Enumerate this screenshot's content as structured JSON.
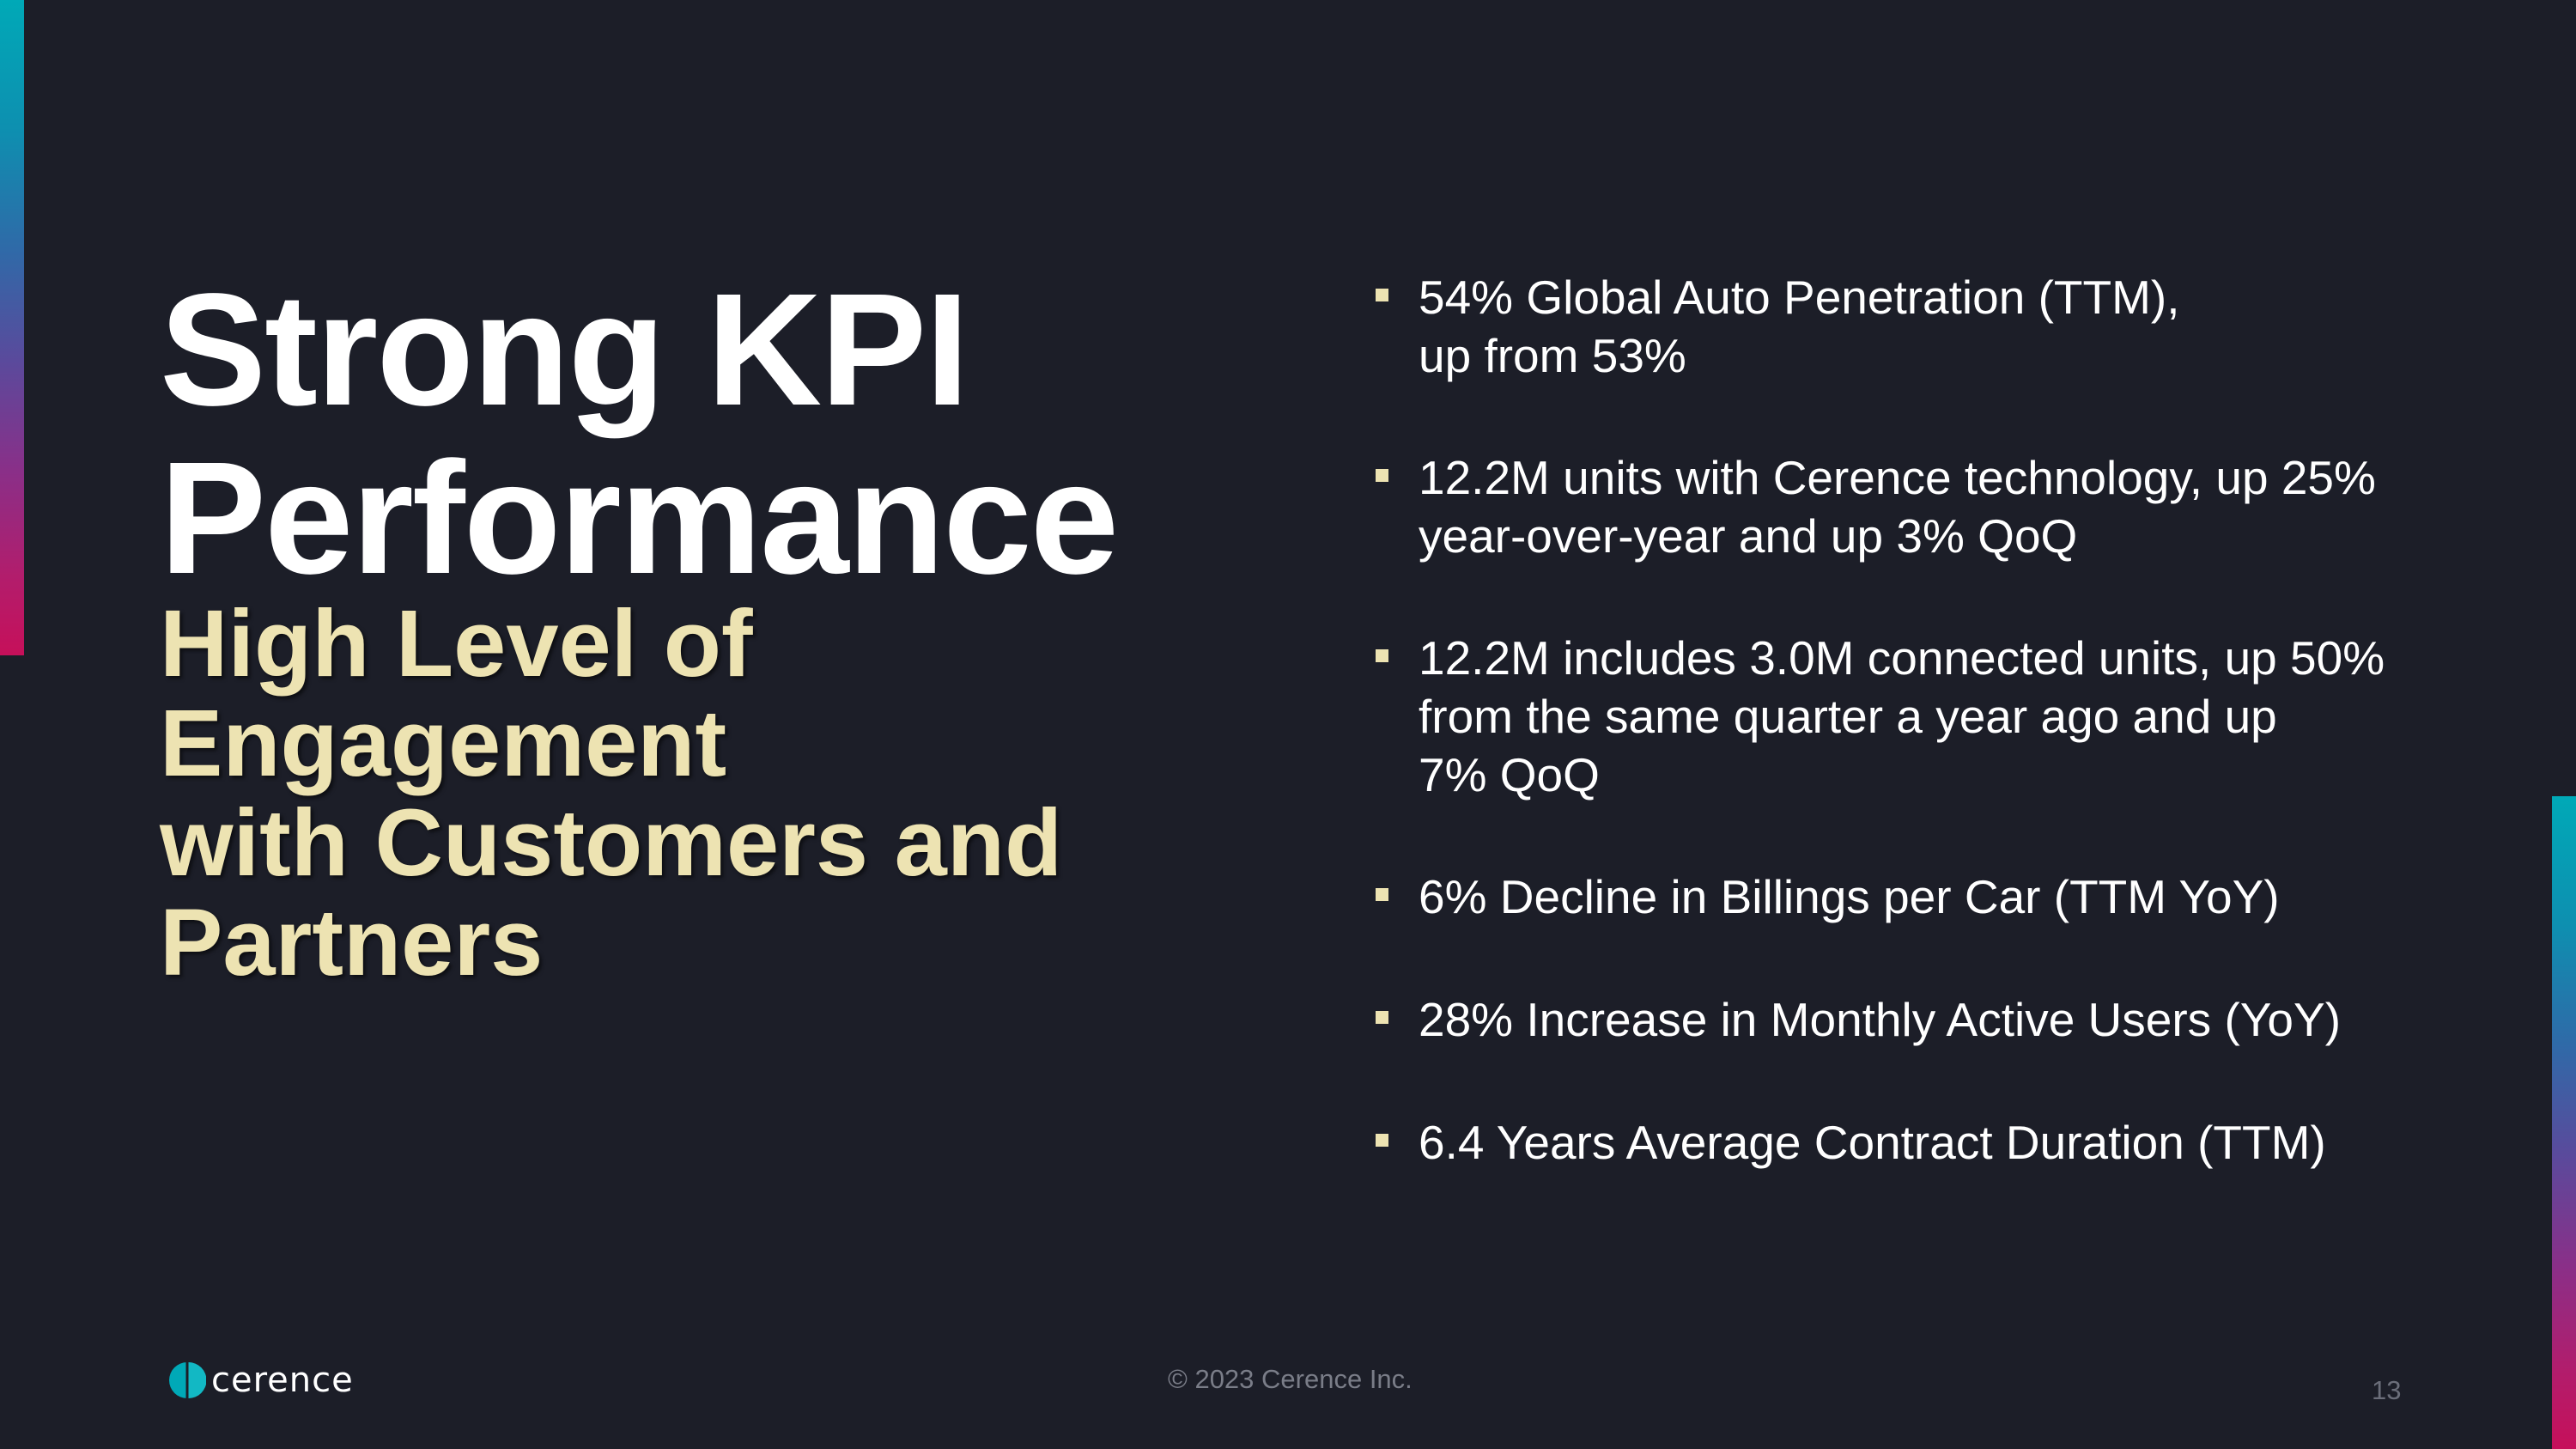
{
  "slide": {
    "title_lines": [
      "Strong KPI",
      "Performance"
    ],
    "subtitle_lines": [
      "High Level of",
      "Engagement",
      "with Customers and",
      "Partners"
    ],
    "bullets": [
      {
        "lines": [
          "54% Global Auto Penetration (TTM),",
          "up from 53%"
        ]
      },
      {
        "lines": [
          "12.2M units with Cerence technology, up 25%",
          "year-over-year and up 3% QoQ"
        ]
      },
      {
        "lines": [
          "12.2M includes 3.0M connected units, up 50%",
          "from the same quarter a year ago and up",
          "7% QoQ"
        ]
      },
      {
        "lines": [
          "6% Decline in Billings per Car (TTM YoY)"
        ]
      },
      {
        "lines": [
          "28% Increase in Monthly Active Users (YoY)"
        ]
      },
      {
        "lines": [
          "6.4 Years Average Contract Duration (TTM)"
        ]
      }
    ],
    "footer": {
      "logo_text": "cerence",
      "logo_icon": "cerence-logo-icon",
      "copyright": "© 2023 Cerence Inc.",
      "page_number": "13"
    },
    "colors": {
      "background": "#1c1e28",
      "title": "#ffffff",
      "subtitle": "#ede3b2",
      "bullet_marker": "#ede3b2",
      "brand_teal": "#00a9b7"
    }
  }
}
